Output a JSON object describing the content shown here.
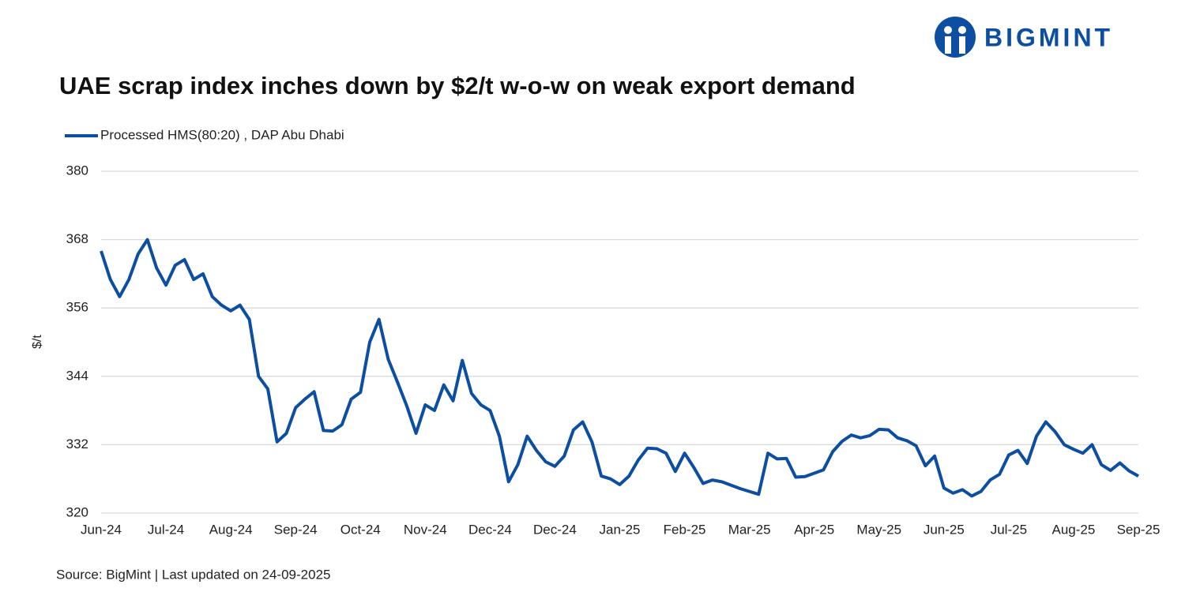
{
  "logo": "BIGMINT",
  "chart_data": {
    "type": "line",
    "title": "UAE scrap index inches down by $2/t w-o-w on weak export demand",
    "y_label": "$/t",
    "source": "Source: BigMint | Last updated on 24-09-2025",
    "categories": [
      "Jun-24",
      null,
      null,
      null,
      null,
      null,
      null,
      "Jul-24",
      null,
      null,
      null,
      null,
      null,
      null,
      "Aug-24",
      null,
      null,
      null,
      null,
      null,
      null,
      "Sep-24",
      null,
      null,
      null,
      null,
      null,
      null,
      "Oct-24",
      null,
      null,
      null,
      null,
      null,
      null,
      "Nov-24",
      null,
      null,
      null,
      null,
      null,
      null,
      "Dec-24",
      null,
      null,
      null,
      null,
      null,
      null,
      "Dec-24",
      null,
      null,
      null,
      null,
      null,
      null,
      "Jan-25",
      null,
      null,
      null,
      null,
      null,
      null,
      "Feb-25",
      null,
      null,
      null,
      null,
      null,
      null,
      "Mar-25",
      null,
      null,
      null,
      null,
      null,
      null,
      "Apr-25",
      null,
      null,
      null,
      null,
      null,
      null,
      "May-25",
      null,
      null,
      null,
      null,
      null,
      null,
      "Jun-25",
      null,
      null,
      null,
      null,
      null,
      null,
      "Jul-25",
      null,
      null,
      null,
      null,
      null,
      null,
      "Aug-25",
      null,
      null,
      null,
      null,
      null,
      null,
      "Sep-25"
    ],
    "series": [
      {
        "name": "Processed HMS(80:20) , DAP Abu Dhabi",
        "color": "#0b4ea2",
        "values": [
          366,
          361,
          358,
          361,
          365.5,
          368,
          363,
          360,
          363.5,
          364.5,
          361,
          362,
          358,
          356.5,
          355.5,
          356.5,
          354,
          344,
          341.8,
          332.5,
          334,
          338.5,
          340,
          341.3,
          334.5,
          334.4,
          335.5,
          340,
          341.2,
          350,
          354,
          347,
          343,
          338.8,
          334,
          339,
          338,
          342.5,
          339.7,
          346.8,
          341,
          339,
          338,
          333.5,
          325.5,
          328.5,
          333.5,
          331,
          329,
          328.2,
          330,
          334.6,
          336,
          332.5,
          326.5,
          326,
          325,
          326.5,
          329.3,
          331.4,
          331.3,
          330.5,
          327.3,
          330.5,
          328,
          325.2,
          325.8,
          325.5,
          324.9,
          324.3,
          323.8,
          323.3,
          330.5,
          329.5,
          329.6,
          326.3,
          326.4,
          327,
          327.6,
          330.8,
          332.6,
          333.7,
          333.2,
          333.6,
          334.7,
          334.6,
          333.2,
          332.7,
          331.8,
          328.3,
          330,
          324.4,
          323.5,
          324.1,
          323,
          323.8,
          325.8,
          326.8,
          330.2,
          331,
          328.7,
          333.5,
          336,
          334.3,
          332,
          331.2,
          330.5,
          332,
          328.5,
          327.5,
          328.8,
          327.4,
          326.5
        ]
      }
    ],
    "ylim": [
      320,
      380
    ],
    "yticks": [
      320,
      332,
      344,
      356,
      368,
      380
    ],
    "grid": true
  }
}
